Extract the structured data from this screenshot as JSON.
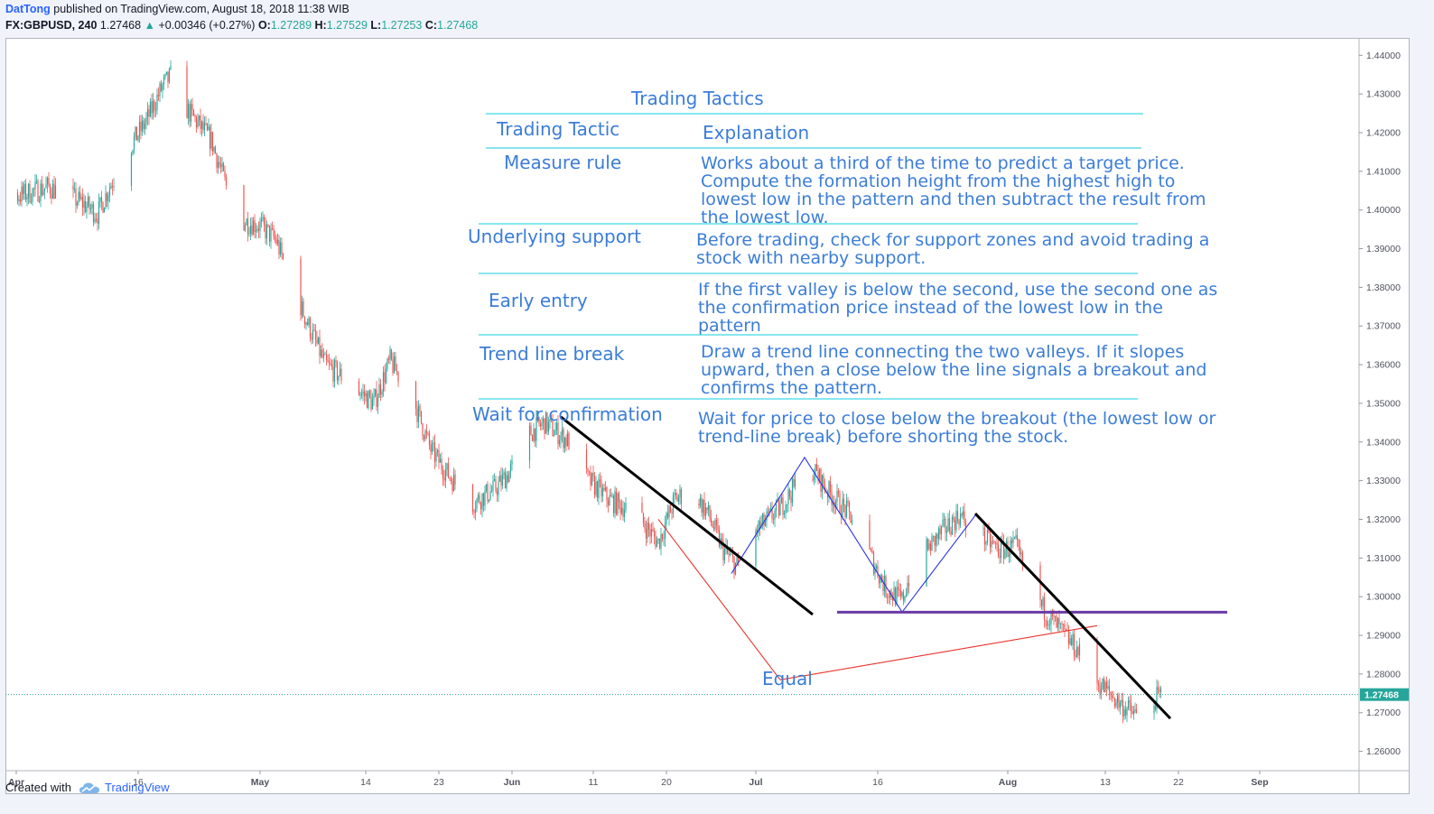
{
  "header": {
    "author": "DatTong",
    "published_text": "published on TradingView.com, August 18, 2018 11:38 WIB",
    "symbol": "FX:GBPUSD, 240",
    "last": "1.27468",
    "change_arrow": "▲",
    "change": "+0.00346 (+0.27%)",
    "o_label": "O:",
    "o_value": "1.27289",
    "h_label": "H:",
    "h_value": "1.27529",
    "l_label": "L:",
    "l_value": "1.27253",
    "c_label": "C:",
    "c_value": "1.27468"
  },
  "footer": {
    "created_with": "Created with",
    "brand": "TradingView",
    "brand_icon": "tradingview-cloud-icon"
  },
  "colors": {
    "up": "#26a69a",
    "down": "#ef5350",
    "table_text": "#3b7dd8",
    "table_lines": "#3fd8e8",
    "blue_pattern": "#2a34e0",
    "red_pattern": "#e8342a",
    "support_line": "#6a3aa6",
    "trend_lines": "#000000"
  },
  "table": {
    "title": "Trading Tactics",
    "col1_header": "Trading Tactic",
    "col2_header": "Explanation",
    "rows": [
      {
        "tactic": "Measure rule",
        "lines": [
          "Works about a third of the time to predict a target price.",
          "Compute the formation height from the highest high to",
          "lowest low in the pattern and then subtract the result from",
          "the lowest low."
        ]
      },
      {
        "tactic": "Underlying support",
        "lines": [
          "Before trading, check for support zones and avoid trading a",
          "stock with nearby support."
        ]
      },
      {
        "tactic": "Early entry",
        "lines": [
          "If the first valley is below the second, use the second one as",
          "the confirmation price instead of the lowest low in the",
          "pattern"
        ]
      },
      {
        "tactic": "Trend line break",
        "lines": [
          "Draw a trend line connecting the two valleys. If it slopes",
          "upward, then a close below the line signals a breakout and",
          "confirms the pattern."
        ]
      },
      {
        "tactic": "Wait for confirmation",
        "lines": [
          "Wait for price to close below the breakout (the lowest low or",
          "trend-line break) before shorting the stock."
        ]
      }
    ]
  },
  "annotation_equal": "Equal",
  "chart_data": {
    "type": "candlestick",
    "symbol": "FX:GBPUSD",
    "interval": "240",
    "ylim": [
      1.255,
      1.4445
    ],
    "y_ticks": [
      "1.44000",
      "1.43000",
      "1.42000",
      "1.41000",
      "1.40000",
      "1.39000",
      "1.38000",
      "1.37000",
      "1.36000",
      "1.35000",
      "1.34000",
      "1.33000",
      "1.32000",
      "1.31000",
      "1.30000",
      "1.29000",
      "1.28000",
      "1.27000",
      "1.26000"
    ],
    "x_ticks": [
      "Apr",
      "16",
      "May",
      "14",
      "23",
      "Jun",
      "11",
      "20",
      "Jul",
      "16",
      "Aug",
      "13",
      "22",
      "Sep"
    ],
    "x_tick_days": [
      0,
      15,
      30,
      43,
      52,
      61,
      71,
      80,
      91,
      106,
      122,
      134,
      143,
      153
    ],
    "last_price_label": "1.27468",
    "last_price": 1.27468,
    "price_path": [
      [
        -5,
        1.406
      ],
      [
        0,
        1.4035
      ],
      [
        4,
        1.406
      ],
      [
        8,
        1.402
      ],
      [
        10,
        1.399
      ],
      [
        13,
        1.413
      ],
      [
        16,
        1.423
      ],
      [
        18,
        1.432
      ],
      [
        20,
        1.437
      ],
      [
        21,
        1.426
      ],
      [
        24,
        1.418
      ],
      [
        26,
        1.405
      ],
      [
        28,
        1.397
      ],
      [
        30,
        1.396
      ],
      [
        32,
        1.392
      ],
      [
        34,
        1.38
      ],
      [
        36,
        1.37
      ],
      [
        38,
        1.36
      ],
      [
        40,
        1.357
      ],
      [
        44,
        1.35
      ],
      [
        46,
        1.361
      ],
      [
        49,
        1.35
      ],
      [
        51,
        1.338
      ],
      [
        53,
        1.332
      ],
      [
        56,
        1.324
      ],
      [
        59,
        1.328
      ],
      [
        61,
        1.333
      ],
      [
        63,
        1.342
      ],
      [
        65,
        1.345
      ],
      [
        68,
        1.34
      ],
      [
        70,
        1.331
      ],
      [
        73,
        1.325
      ],
      [
        76,
        1.322
      ],
      [
        79,
        1.314
      ],
      [
        81,
        1.325
      ],
      [
        83,
        1.328
      ],
      [
        85,
        1.322
      ],
      [
        87,
        1.312
      ],
      [
        89,
        1.307
      ],
      [
        91,
        1.317
      ],
      [
        94,
        1.323
      ],
      [
        96,
        1.329
      ],
      [
        98,
        1.333
      ],
      [
        100,
        1.327
      ],
      [
        103,
        1.32
      ],
      [
        105,
        1.311
      ],
      [
        107,
        1.302
      ],
      [
        109,
        1.299
      ],
      [
        110,
        1.306
      ],
      [
        112,
        1.312
      ],
      [
        114,
        1.317
      ],
      [
        116,
        1.321
      ],
      [
        118,
        1.317
      ],
      [
        121,
        1.312
      ],
      [
        123,
        1.313
      ],
      [
        125,
        1.301
      ],
      [
        127,
        1.295
      ],
      [
        129,
        1.29
      ],
      [
        131,
        1.285
      ],
      [
        133,
        1.278
      ],
      [
        136,
        1.272
      ],
      [
        138,
        1.269
      ],
      [
        140,
        1.273
      ],
      [
        141,
        1.275
      ]
    ],
    "overlays": {
      "trend_line_1": [
        [
          67,
          1.3465
        ],
        [
          98,
          1.2954
        ]
      ],
      "blue_zigzag": [
        [
          88,
          1.306
        ],
        [
          97,
          1.336
        ],
        [
          109,
          1.296
        ],
        [
          118,
          1.321
        ]
      ],
      "support_line": [
        [
          101,
          1.296
        ],
        [
          149,
          1.296
        ]
      ],
      "red_lines": [
        [
          [
            79,
            1.32
          ],
          [
            94,
            1.2785
          ]
        ],
        [
          [
            94,
            1.2785
          ],
          [
            133,
            1.2925
          ]
        ]
      ],
      "trend_line_2": [
        [
          118,
          1.3215
        ],
        [
          142,
          1.2685
        ]
      ]
    }
  }
}
